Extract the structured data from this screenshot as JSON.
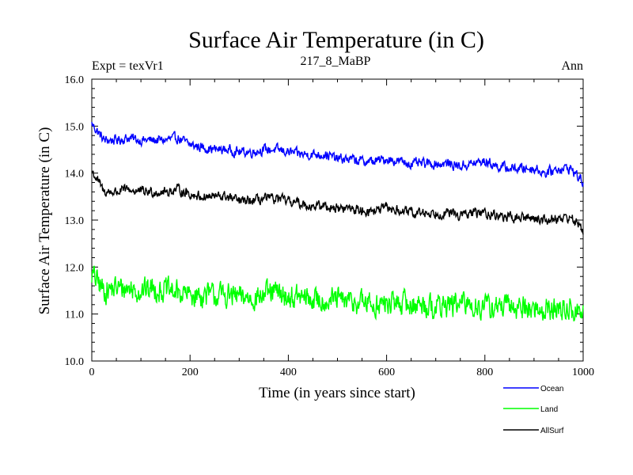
{
  "chart_data": {
    "type": "line",
    "title": "Surface Air Temperature (in C)",
    "subtitle_left": "Expt = texVr1",
    "subtitle_center": "217_8_MaBP",
    "subtitle_right": "Ann",
    "xlabel": "Time (in years since start)",
    "ylabel": "Surface Air Temperature (in C)",
    "xlim": [
      0,
      1000
    ],
    "ylim": [
      10.0,
      16.0
    ],
    "x_ticks": [
      0,
      200,
      400,
      600,
      800,
      1000
    ],
    "x_tick_labels": [
      "0",
      "200",
      "400",
      "600",
      "800",
      "1000"
    ],
    "y_ticks": [
      10,
      11,
      12,
      13,
      14,
      15,
      16
    ],
    "y_tick_labels": [
      "10.0",
      "11.0",
      "12.0",
      "13.0",
      "14.0",
      "15.0",
      "16.0"
    ],
    "grid": false,
    "legend_position": "bottom-right",
    "x": [
      0,
      25,
      50,
      75,
      100,
      125,
      150,
      175,
      200,
      225,
      250,
      275,
      300,
      325,
      350,
      375,
      400,
      425,
      450,
      475,
      500,
      525,
      550,
      575,
      600,
      625,
      650,
      675,
      700,
      725,
      750,
      775,
      800,
      825,
      850,
      875,
      900,
      925,
      950,
      975,
      1000
    ],
    "series": [
      {
        "name": "Ocean",
        "color": "#0000ff",
        "values": [
          15.05,
          14.7,
          14.7,
          14.75,
          14.7,
          14.7,
          14.7,
          14.75,
          14.6,
          14.55,
          14.5,
          14.5,
          14.45,
          14.45,
          14.5,
          14.5,
          14.45,
          14.4,
          14.4,
          14.4,
          14.3,
          14.3,
          14.25,
          14.25,
          14.3,
          14.25,
          14.2,
          14.2,
          14.2,
          14.2,
          14.15,
          14.2,
          14.25,
          14.15,
          14.1,
          14.1,
          14.1,
          14.0,
          14.1,
          14.1,
          13.8
        ]
      },
      {
        "name": "Land",
        "color": "#00ff00",
        "values": [
          11.85,
          11.5,
          11.55,
          11.55,
          11.5,
          11.55,
          11.5,
          11.45,
          11.4,
          11.4,
          11.4,
          11.4,
          11.35,
          11.35,
          11.4,
          11.45,
          11.35,
          11.35,
          11.3,
          11.3,
          11.3,
          11.25,
          11.25,
          11.2,
          11.2,
          11.25,
          11.2,
          11.2,
          11.15,
          11.2,
          11.2,
          11.2,
          11.15,
          11.15,
          11.15,
          11.15,
          11.1,
          11.1,
          11.1,
          11.1,
          11.0
        ]
      },
      {
        "name": "AllSurf",
        "color": "#000000",
        "values": [
          14.05,
          13.6,
          13.6,
          13.65,
          13.6,
          13.6,
          13.6,
          13.65,
          13.55,
          13.5,
          13.5,
          13.5,
          13.4,
          13.4,
          13.45,
          13.45,
          13.4,
          13.35,
          13.3,
          13.3,
          13.25,
          13.25,
          13.2,
          13.2,
          13.25,
          13.2,
          13.15,
          13.15,
          13.15,
          13.15,
          13.1,
          13.15,
          13.15,
          13.1,
          13.05,
          13.05,
          13.05,
          13.0,
          13.05,
          13.05,
          12.8
        ]
      }
    ]
  }
}
